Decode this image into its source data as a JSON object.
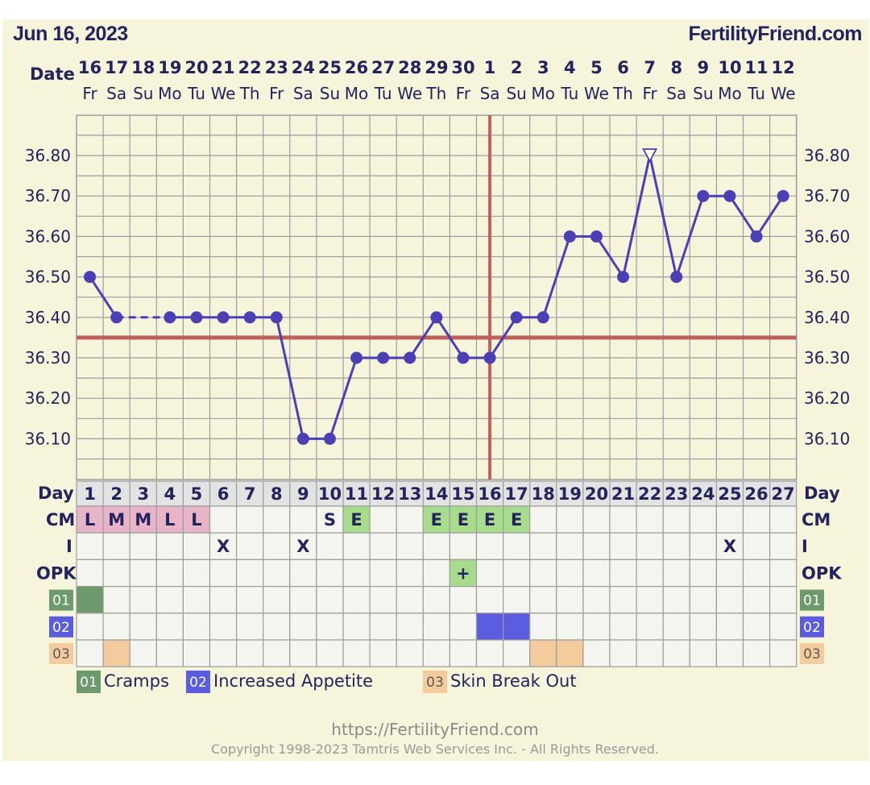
{
  "header": {
    "date": "Jun 16, 2023",
    "brand": "FertilityFriend.com"
  },
  "colors": {
    "background": "#f7f4dc",
    "grid": "#9c9c9c",
    "line": "#4a3fb5",
    "coverline": "#c0605a",
    "text": "#23235e",
    "cm_pink": "#e8b4c8",
    "cm_green": "#a6dc8c",
    "cramps": "#6c9a6c",
    "appetite": "#5b5ce0",
    "skin": "#f4cb9c",
    "cell": "#f5f5ef"
  },
  "chart_data": {
    "type": "line",
    "row_labels": {
      "date": "Date",
      "day": "Day",
      "cm": "CM",
      "intercourse": "I",
      "opk": "OPK"
    },
    "dates": [
      "16",
      "17",
      "18",
      "19",
      "20",
      "21",
      "22",
      "23",
      "24",
      "25",
      "26",
      "27",
      "28",
      "29",
      "30",
      "1",
      "2",
      "3",
      "4",
      "5",
      "6",
      "7",
      "8",
      "9",
      "10",
      "11",
      "12"
    ],
    "weekdays": [
      "Fr",
      "Sa",
      "Su",
      "Mo",
      "Tu",
      "We",
      "Th",
      "Fr",
      "Sa",
      "Su",
      "Mo",
      "Tu",
      "We",
      "Th",
      "Fr",
      "Sa",
      "Su",
      "Mo",
      "Tu",
      "We",
      "Th",
      "Fr",
      "Sa",
      "Su",
      "Mo",
      "Tu",
      "We"
    ],
    "days": [
      "1",
      "2",
      "3",
      "4",
      "5",
      "6",
      "7",
      "8",
      "9",
      "10",
      "11",
      "12",
      "13",
      "14",
      "15",
      "16",
      "17",
      "18",
      "19",
      "20",
      "21",
      "22",
      "23",
      "24",
      "25",
      "26",
      "27"
    ],
    "y_ticks": [
      "36.80",
      "36.70",
      "36.60",
      "36.50",
      "36.40",
      "36.30",
      "36.20",
      "36.10"
    ],
    "ylim": [
      36.0,
      36.9
    ],
    "temperatures": [
      36.5,
      36.4,
      null,
      36.4,
      36.4,
      36.4,
      36.4,
      36.4,
      36.1,
      36.1,
      36.3,
      36.3,
      36.3,
      36.4,
      36.3,
      36.3,
      36.4,
      36.4,
      36.6,
      36.6,
      36.5,
      36.8,
      36.5,
      36.7,
      36.7,
      36.6,
      36.7
    ],
    "open_marker_day": 22,
    "dashed_gap": [
      2,
      4
    ],
    "coverline": 36.35,
    "ovulation_day": 16,
    "cervical_mucus": [
      "L",
      "M",
      "M",
      "L",
      "L",
      "",
      "",
      "",
      "",
      "S",
      "E",
      "",
      "",
      "E",
      "E",
      "E",
      "E",
      "",
      "",
      "",
      "",
      "",
      "",
      "",
      "",
      "",
      ""
    ],
    "intercourse": [
      "",
      "",
      "",
      "",
      "",
      "X",
      "",
      "",
      "X",
      "",
      "",
      "",
      "",
      "",
      "",
      "",
      "",
      "",
      "",
      "",
      "",
      "",
      "",
      "",
      "X",
      "",
      ""
    ],
    "opk": [
      "",
      "",
      "",
      "",
      "",
      "",
      "",
      "",
      "",
      "",
      "",
      "",
      "",
      "",
      "+",
      "",
      "",
      "",
      "",
      "",
      "",
      "",
      "",
      "",
      "",
      "",
      ""
    ],
    "symptoms": [
      {
        "code": "01",
        "name": "Cramps",
        "days": [
          1
        ]
      },
      {
        "code": "02",
        "name": "Increased Appetite",
        "days": [
          16,
          17
        ]
      },
      {
        "code": "03",
        "name": "Skin Break Out",
        "days": [
          2,
          18,
          19
        ]
      }
    ]
  },
  "footer": {
    "url": "https://FertilityFriend.com",
    "copyright": "Copyright 1998-2023 Tamtris Web Services Inc. - All Rights Reserved."
  }
}
